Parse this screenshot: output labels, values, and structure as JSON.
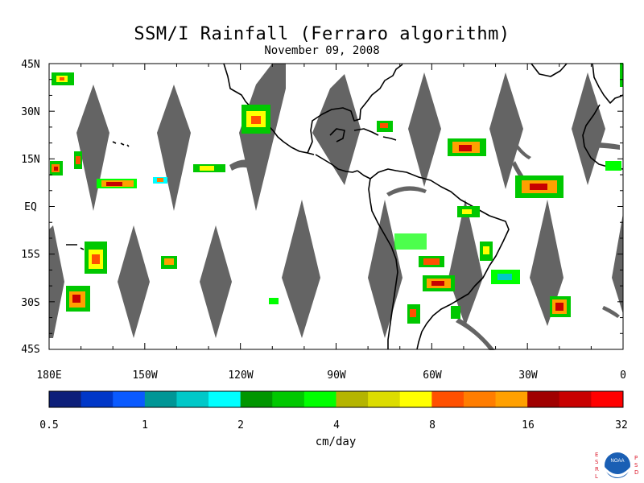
{
  "title": "SSM/I Rainfall (Ferraro algorithm)",
  "subtitle": "November 09, 2008",
  "map": {
    "lat_labels": [
      "45N",
      "30N",
      "15N",
      "EQ",
      "15S",
      "30S",
      "45S"
    ],
    "lon_labels": [
      "180E",
      "150W",
      "120W",
      "90W",
      "60W",
      "30W",
      "0"
    ],
    "lat_range": [
      -45,
      45
    ],
    "lon_range": [
      -180,
      0
    ],
    "swath_gap_color": "#646464",
    "land_outline_color": "#000000"
  },
  "colorbar": {
    "unit": "cm/day",
    "tick_labels": [
      "0.5",
      "1",
      "2",
      "4",
      "8",
      "16",
      "32"
    ],
    "colors": [
      "#0d1f7a",
      "#0037c8",
      "#0a5aff",
      "#009696",
      "#00c8c8",
      "#00ffff",
      "#009600",
      "#00c800",
      "#00ff00",
      "#b4b400",
      "#dcdc00",
      "#ffff00",
      "#ff5000",
      "#ff7d00",
      "#ffa000",
      "#a00000",
      "#c80000",
      "#ff0000"
    ]
  },
  "logo": {
    "left_letters": [
      "E",
      "S",
      "R",
      "L"
    ],
    "right_letters": [
      "P",
      "S",
      "D"
    ],
    "badge_text": "NOAA"
  }
}
